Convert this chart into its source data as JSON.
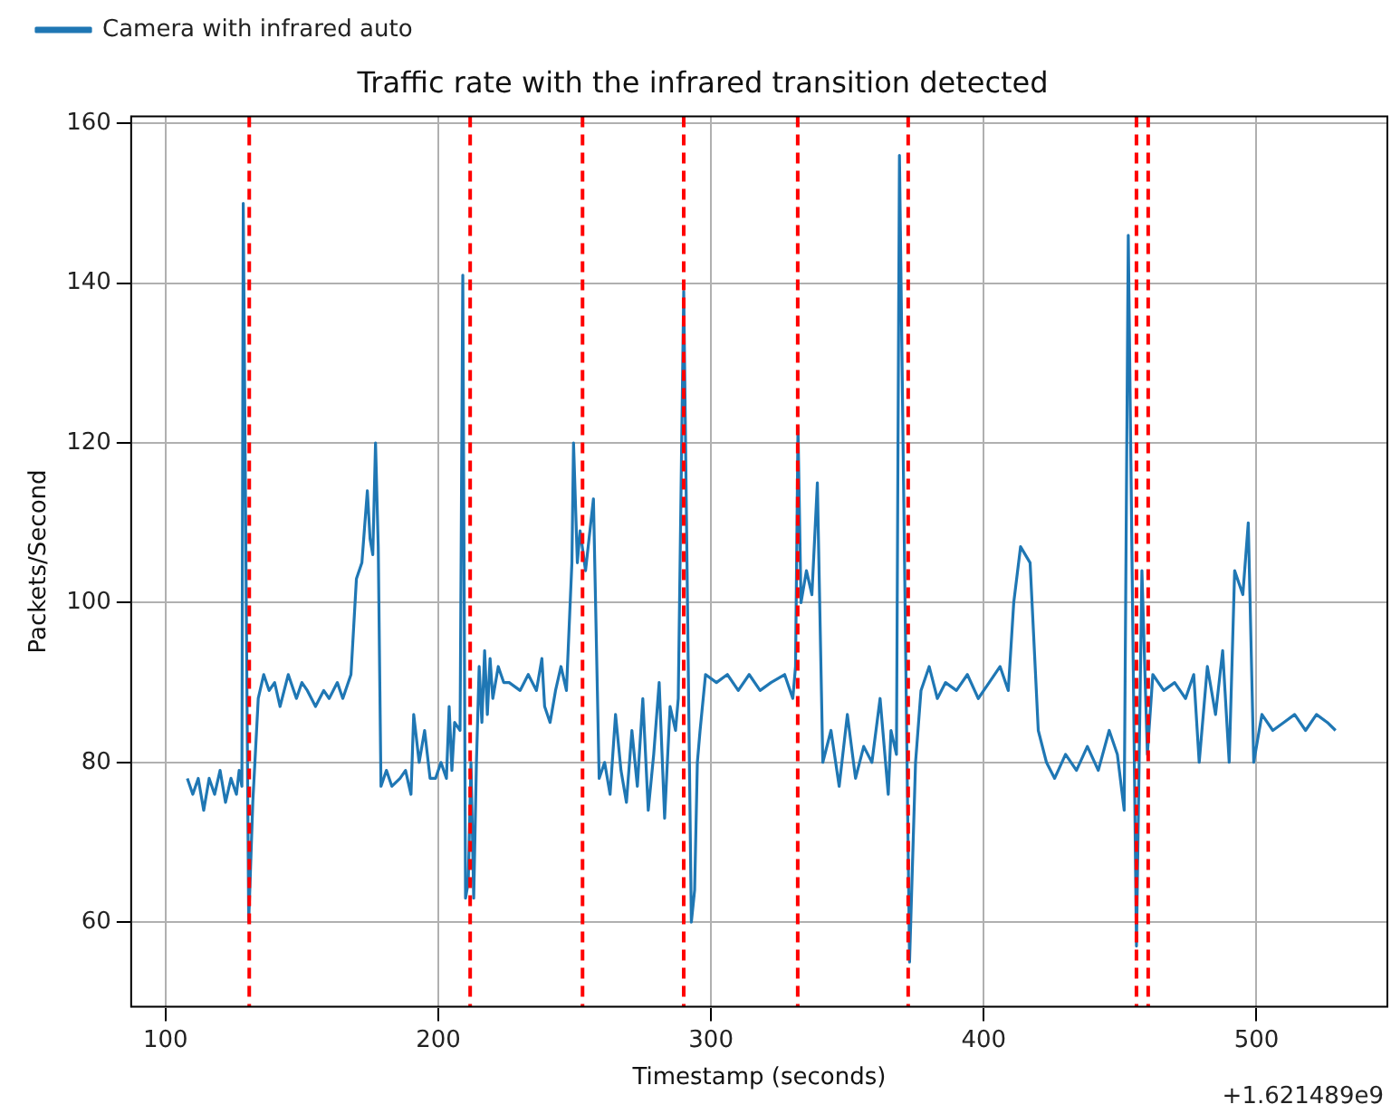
{
  "chart_data": {
    "type": "line",
    "title": "Traffic rate with the infrared transition detected",
    "xlabel": "Timestamp (seconds)",
    "ylabel": "Packets/Second",
    "annotations": [
      "+1.621489e9"
    ],
    "xlim": [
      87.4,
      548
    ],
    "ylim": [
      49.4,
      160.9
    ],
    "xticks": [
      100,
      200,
      300,
      400,
      500
    ],
    "yticks": [
      60,
      80,
      100,
      120,
      140,
      160
    ],
    "grid": true,
    "legend": "top left",
    "marker": "none",
    "line_style": "solid",
    "ref_lines": [
      {
        "axis": "x",
        "value": 130.7,
        "color": "#ff0000",
        "line_style": "dashed"
      },
      {
        "axis": "x",
        "value": 211.7,
        "color": "#ff0000",
        "line_style": "dashed"
      },
      {
        "axis": "x",
        "value": 252.9,
        "color": "#ff0000",
        "line_style": "dashed"
      },
      {
        "axis": "x",
        "value": 290,
        "color": "#ff0000",
        "line_style": "dashed"
      },
      {
        "axis": "x",
        "value": 331.8,
        "color": "#ff0000",
        "line_style": "dashed"
      },
      {
        "axis": "x",
        "value": 372.3,
        "color": "#ff0000",
        "line_style": "dashed"
      },
      {
        "axis": "x",
        "value": 456,
        "color": "#ff0000",
        "line_style": "dashed"
      },
      {
        "axis": "x",
        "value": 460.3,
        "color": "#ff0000",
        "line_style": "dashed"
      }
    ],
    "series": [
      {
        "name": "Camera with infrared auto",
        "color": "#1f77b4",
        "x": [
          108,
          110,
          112,
          114,
          116,
          118,
          120,
          122,
          124,
          126,
          127,
          128,
          128.5,
          130.5,
          132,
          134,
          136,
          138,
          140,
          142,
          145,
          148,
          150,
          152,
          155,
          158,
          160,
          163,
          165,
          168,
          170,
          172,
          174,
          175,
          176,
          177,
          178,
          179,
          181,
          183,
          186,
          188,
          190,
          191,
          193,
          195,
          197,
          199,
          201,
          203,
          204,
          205,
          206,
          208,
          209,
          210,
          211,
          212,
          213,
          214,
          215,
          216,
          217,
          218,
          219,
          220,
          222,
          224,
          226,
          230,
          233,
          236,
          238,
          239,
          241,
          243,
          245,
          247,
          249,
          249.6,
          251,
          252,
          254,
          256.9,
          259,
          261,
          263,
          265,
          267,
          269,
          271,
          273,
          275,
          277,
          279,
          281,
          283,
          285,
          287,
          288,
          290,
          292.8,
          294,
          295,
          296,
          298,
          302,
          306,
          310,
          314,
          318,
          322,
          327,
          330,
          331,
          331.9,
          333,
          335,
          337,
          339,
          341,
          344,
          347,
          350,
          353,
          356,
          359,
          362,
          365,
          366,
          368,
          369.1,
          372.8,
          375,
          377,
          380,
          383,
          386,
          390,
          394,
          398,
          402,
          406,
          409,
          411,
          413.5,
          417,
          420,
          423,
          426,
          430,
          434,
          438,
          442,
          446,
          449,
          451.5,
          453,
          456,
          458,
          460,
          462,
          466,
          470,
          474,
          477,
          479,
          482,
          485,
          487.6,
          490,
          492,
          495,
          497,
          499,
          502,
          506,
          510,
          514,
          518,
          522,
          526,
          529
        ],
        "values": [
          78,
          76,
          78,
          74,
          78,
          76,
          79,
          75,
          78,
          76,
          79,
          77,
          150,
          60,
          75,
          88,
          91,
          89,
          90,
          87,
          91,
          88,
          90,
          89,
          87,
          89,
          88,
          90,
          88,
          91,
          103,
          105,
          114,
          108,
          106,
          120,
          107,
          77,
          79,
          77,
          78,
          79,
          76,
          86,
          80,
          84,
          78,
          78,
          80,
          78,
          87,
          79,
          85,
          84,
          141,
          63,
          65,
          80,
          63,
          80,
          92,
          85,
          94,
          86,
          93,
          88,
          92,
          90,
          90,
          89,
          91,
          89,
          93,
          87,
          85,
          89,
          92,
          89,
          105,
          120,
          105,
          109,
          104,
          113,
          78,
          80,
          76,
          86,
          79,
          75,
          84,
          77,
          88,
          74,
          81,
          90,
          73,
          87,
          84,
          88,
          139,
          60,
          64,
          80,
          84,
          91,
          90,
          91,
          89,
          91,
          89,
          90,
          91,
          88,
          92,
          122,
          100,
          104,
          101,
          115,
          80,
          84,
          77,
          86,
          78,
          82,
          80,
          88,
          76,
          84,
          81,
          156,
          55,
          80,
          89,
          92,
          88,
          90,
          89,
          91,
          88,
          90,
          92,
          89,
          100,
          107,
          105,
          84,
          80,
          78,
          81,
          79,
          82,
          79,
          84,
          81,
          74,
          146,
          57,
          104,
          81,
          91,
          89,
          90,
          88,
          91,
          80,
          92,
          86,
          94,
          80,
          104,
          101,
          110,
          80,
          86,
          84,
          85,
          86,
          84,
          86,
          85,
          84
        ]
      }
    ]
  }
}
